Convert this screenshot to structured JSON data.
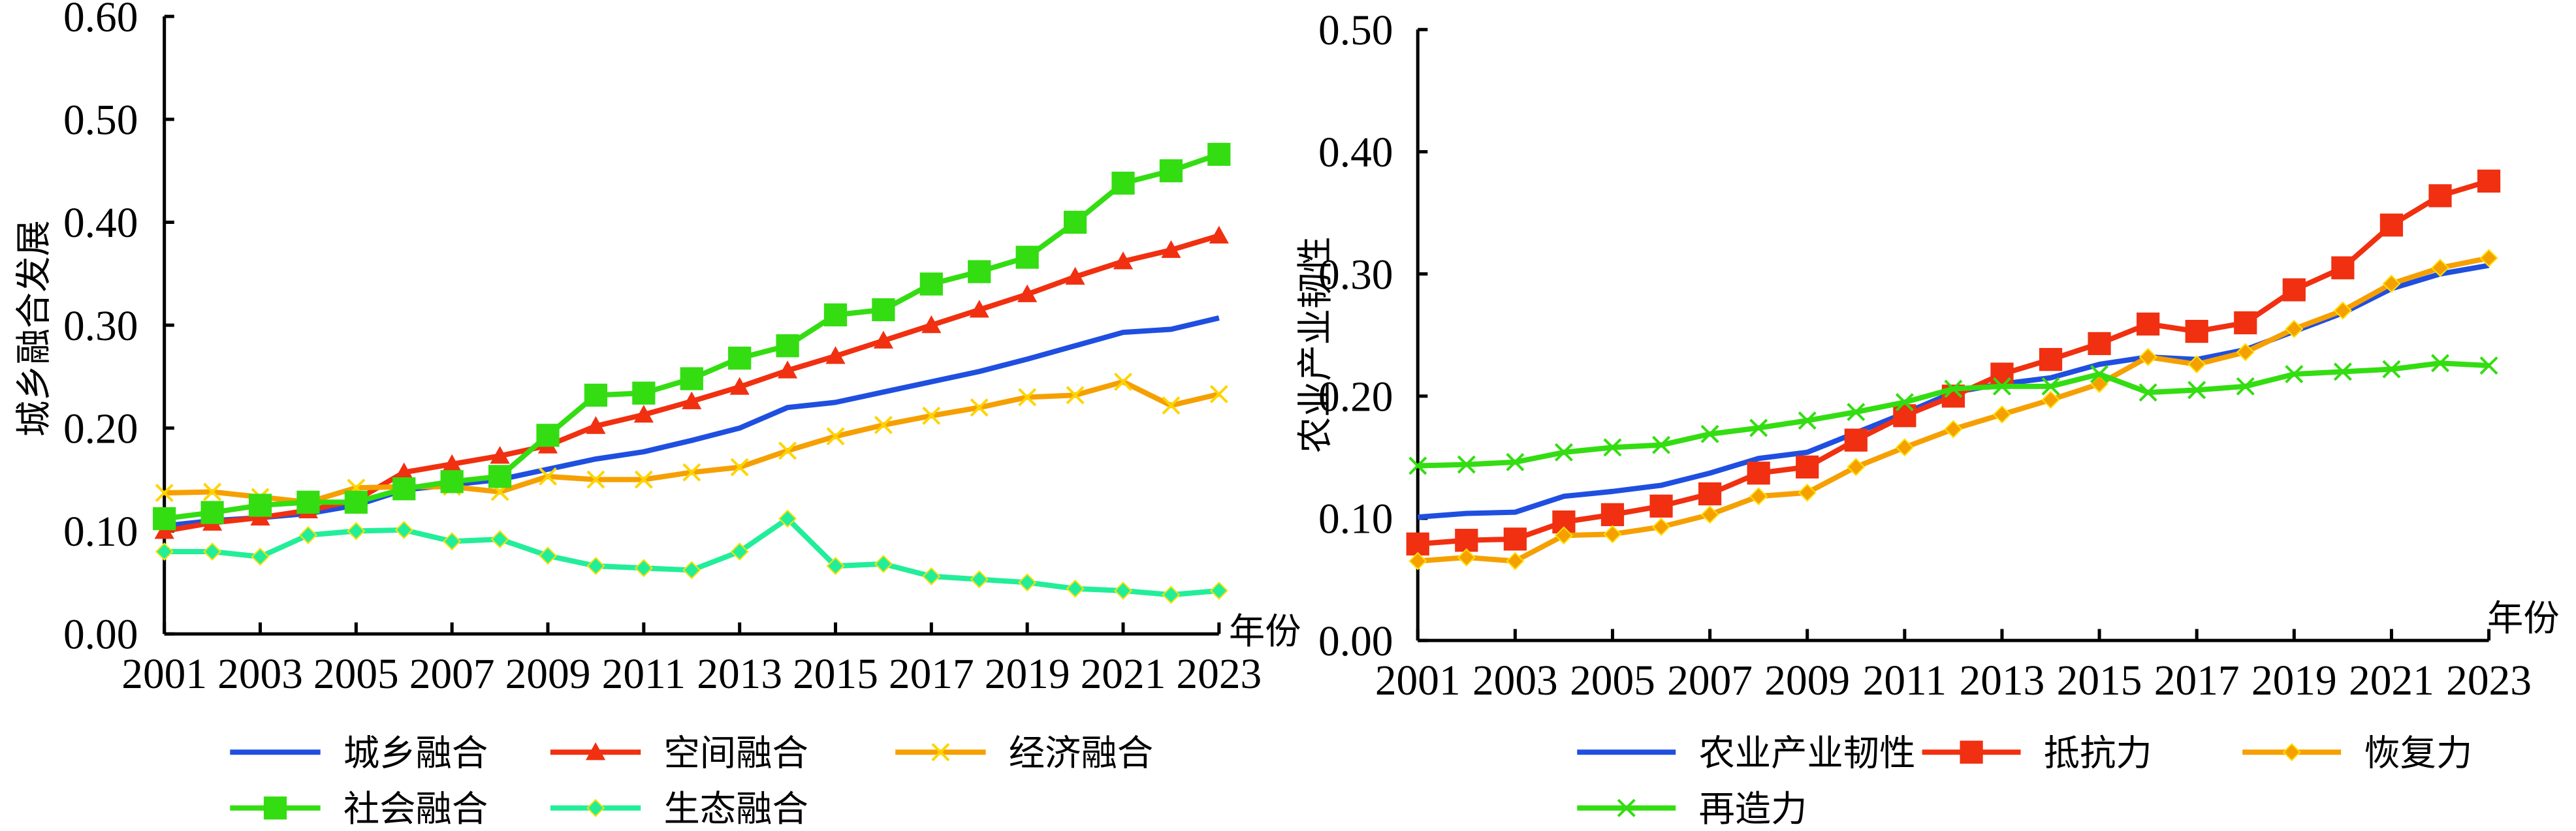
{
  "chart_data": [
    {
      "type": "line",
      "ylabel": "城乡融合发展",
      "xlabel": "年份",
      "ylim": [
        0,
        0.6
      ],
      "yticks": [
        "0.00",
        "0.10",
        "0.20",
        "0.30",
        "0.40",
        "0.50",
        "0.60"
      ],
      "x": [
        2001,
        2002,
        2003,
        2004,
        2005,
        2006,
        2007,
        2008,
        2009,
        2010,
        2011,
        2012,
        2013,
        2014,
        2015,
        2016,
        2017,
        2018,
        2019,
        2020,
        2021,
        2022,
        2023
      ],
      "xticks": [
        "2001",
        "2003",
        "2005",
        "2007",
        "2009",
        "2011",
        "2013",
        "2015",
        "2017",
        "2019",
        "2021",
        "2023"
      ],
      "grid": false,
      "legend": "bottom",
      "series": [
        {
          "name": "城乡融合",
          "color": "#1f4fe0",
          "marker": "none",
          "values": [
            0.105,
            0.11,
            0.113,
            0.117,
            0.125,
            0.14,
            0.145,
            0.15,
            0.16,
            0.17,
            0.177,
            0.188,
            0.2,
            0.22,
            0.225,
            0.235,
            0.245,
            0.255,
            0.267,
            0.28,
            0.293,
            0.296,
            0.307
          ]
        },
        {
          "name": "空间融合",
          "color": "#f03010",
          "marker": "triangle",
          "values": [
            0.1,
            0.108,
            0.113,
            0.12,
            0.13,
            0.157,
            0.165,
            0.173,
            0.183,
            0.202,
            0.213,
            0.226,
            0.24,
            0.256,
            0.27,
            0.285,
            0.3,
            0.315,
            0.33,
            0.347,
            0.362,
            0.373,
            0.387
          ]
        },
        {
          "name": "经济融合",
          "color": "#f5a000",
          "marker": "x",
          "values": [
            0.137,
            0.138,
            0.133,
            0.128,
            0.142,
            0.143,
            0.143,
            0.138,
            0.153,
            0.15,
            0.15,
            0.157,
            0.162,
            0.178,
            0.192,
            0.203,
            0.212,
            0.22,
            0.23,
            0.232,
            0.245,
            0.222,
            0.233
          ]
        },
        {
          "name": "社会融合",
          "color": "#33dd11",
          "marker": "square",
          "values": [
            0.112,
            0.118,
            0.125,
            0.128,
            0.128,
            0.141,
            0.148,
            0.153,
            0.193,
            0.232,
            0.234,
            0.248,
            0.268,
            0.28,
            0.31,
            0.315,
            0.34,
            0.352,
            0.366,
            0.4,
            0.438,
            0.45,
            0.466
          ]
        },
        {
          "name": "生态融合",
          "color": "#22ee99",
          "marker": "diamond",
          "values": [
            0.08,
            0.08,
            0.075,
            0.096,
            0.1,
            0.101,
            0.09,
            0.092,
            0.076,
            0.066,
            0.064,
            0.062,
            0.08,
            0.112,
            0.066,
            0.068,
            0.056,
            0.053,
            0.05,
            0.044,
            0.042,
            0.038,
            0.042
          ]
        }
      ]
    },
    {
      "type": "line",
      "ylabel": "农业产业韧性",
      "xlabel": "年份",
      "ylim": [
        0,
        0.5
      ],
      "yticks": [
        "0.00",
        "0.10",
        "0.20",
        "0.30",
        "0.40",
        "0.50"
      ],
      "x": [
        2001,
        2002,
        2003,
        2004,
        2005,
        2006,
        2007,
        2008,
        2009,
        2010,
        2011,
        2012,
        2013,
        2014,
        2015,
        2016,
        2017,
        2018,
        2019,
        2020,
        2021,
        2022,
        2023
      ],
      "xticks": [
        "2001",
        "2003",
        "2005",
        "2007",
        "2009",
        "2011",
        "2013",
        "2015",
        "2017",
        "2019",
        "2021",
        "2023"
      ],
      "grid": false,
      "legend": "bottom",
      "series": [
        {
          "name": "农业产业韧性",
          "color": "#1f4fe0",
          "marker": "none",
          "values": [
            0.101,
            0.104,
            0.105,
            0.118,
            0.122,
            0.127,
            0.137,
            0.149,
            0.154,
            0.17,
            0.186,
            0.203,
            0.21,
            0.215,
            0.226,
            0.232,
            0.23,
            0.238,
            0.253,
            0.268,
            0.288,
            0.3,
            0.307
          ]
        },
        {
          "name": "抵抗力",
          "color": "#f03010",
          "marker": "square",
          "values": [
            0.079,
            0.082,
            0.083,
            0.097,
            0.103,
            0.11,
            0.12,
            0.137,
            0.142,
            0.164,
            0.184,
            0.2,
            0.218,
            0.23,
            0.243,
            0.259,
            0.253,
            0.26,
            0.287,
            0.305,
            0.34,
            0.364,
            0.376
          ]
        },
        {
          "name": "恢复力",
          "color": "#f5a000",
          "marker": "diamond",
          "values": [
            0.065,
            0.068,
            0.065,
            0.086,
            0.087,
            0.093,
            0.103,
            0.118,
            0.121,
            0.142,
            0.158,
            0.173,
            0.185,
            0.197,
            0.21,
            0.232,
            0.226,
            0.236,
            0.255,
            0.27,
            0.292,
            0.305,
            0.313
          ]
        },
        {
          "name": "再造力",
          "color": "#33dd11",
          "marker": "x",
          "values": [
            0.143,
            0.144,
            0.146,
            0.154,
            0.158,
            0.16,
            0.169,
            0.174,
            0.18,
            0.187,
            0.195,
            0.206,
            0.208,
            0.208,
            0.218,
            0.203,
            0.205,
            0.208,
            0.218,
            0.22,
            0.222,
            0.227,
            0.225
          ]
        }
      ]
    }
  ]
}
